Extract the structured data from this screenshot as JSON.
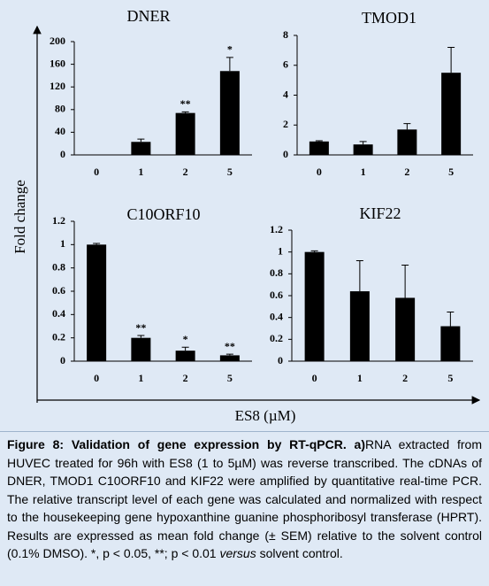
{
  "figure": {
    "y_label": "Fold change",
    "x_label": "ES8 (µM)"
  },
  "chart_data": [
    {
      "type": "bar",
      "title": "DNER",
      "categories": [
        "0",
        "1",
        "2",
        "5"
      ],
      "values": [
        0,
        23,
        74,
        148
      ],
      "errors": [
        0,
        5,
        2,
        24
      ],
      "annotations": [
        null,
        null,
        "**",
        "*"
      ],
      "color": "#000000",
      "ylim": [
        0,
        200
      ],
      "yticks": [
        0,
        40,
        80,
        120,
        160,
        200
      ]
    },
    {
      "type": "bar",
      "title": "TMOD1",
      "categories": [
        "0",
        "1",
        "2",
        "5"
      ],
      "values": [
        0.9,
        0.7,
        1.7,
        5.5
      ],
      "errors": [
        0.05,
        0.2,
        0.4,
        1.7
      ],
      "annotations": [
        null,
        null,
        null,
        null
      ],
      "color": "#000000",
      "ylim": [
        0,
        8
      ],
      "yticks": [
        0,
        2,
        4,
        6,
        8
      ]
    },
    {
      "type": "bar",
      "title": "C10ORF10",
      "categories": [
        "0",
        "1",
        "2",
        "5"
      ],
      "values": [
        1.0,
        0.2,
        0.09,
        0.05
      ],
      "errors": [
        0.01,
        0.02,
        0.03,
        0.01
      ],
      "annotations": [
        null,
        "**",
        "*",
        "**"
      ],
      "color": "#000000",
      "ylim": [
        0,
        1.2
      ],
      "yticks": [
        0,
        0.2,
        0.4,
        0.6,
        0.8,
        1,
        1.2
      ]
    },
    {
      "type": "bar",
      "title": "KIF22",
      "categories": [
        "0",
        "1",
        "2",
        "5"
      ],
      "values": [
        1.0,
        0.64,
        0.58,
        0.32
      ],
      "errors": [
        0.01,
        0.28,
        0.3,
        0.13
      ],
      "annotations": [
        null,
        null,
        null,
        null
      ],
      "color": "#000000",
      "ylim": [
        0,
        1.2
      ],
      "yticks": [
        0,
        0.2,
        0.4,
        0.6,
        0.8,
        1,
        1.2
      ]
    }
  ],
  "caption": {
    "lead": "Figure 8: Validation of gene expression by RT-qPCR. a)",
    "body": "RNA extracted from HUVEC treated for 96h with ES8 (1 to 5µM) was reverse transcribed. The cDNAs of DNER, TMOD1 C10ORF10 and KIF22 were amplified by quantitative real-time PCR. The relative transcript level of each gene was calculated and normalized with respect to the housekeeping gene hypoxanthine guanine phosphoribosyl transferase (HPRT). Results are expressed as mean fold change (± SEM) relative to the solvent control (0.1% DMSO). *, p < 0.05, **; p < 0.01 ",
    "italic": "versus",
    "tail": " solvent control."
  }
}
